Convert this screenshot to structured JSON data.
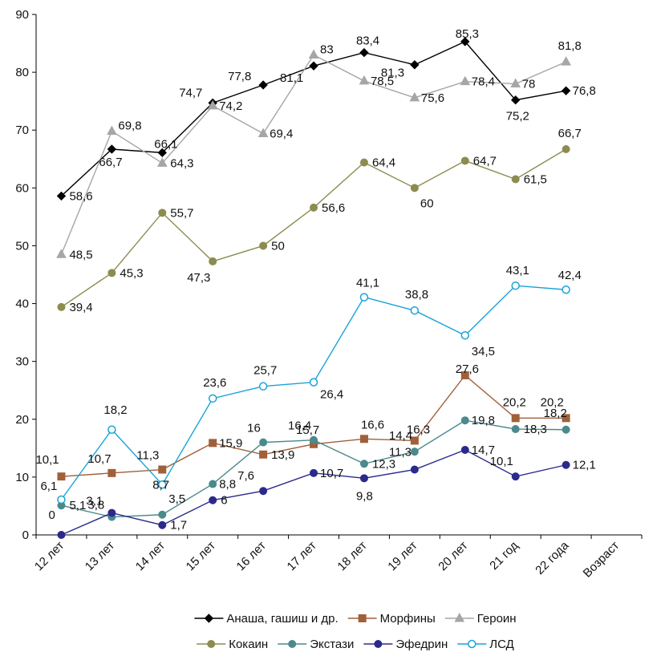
{
  "chart_data": {
    "type": "line",
    "title": "",
    "xlabel": "Возраст",
    "ylabel": "",
    "ylim": [
      0,
      90
    ],
    "yticks": [
      0,
      10,
      20,
      30,
      40,
      50,
      60,
      70,
      80,
      90
    ],
    "grid": false,
    "legend_position": "bottom",
    "categories": [
      "12 лет",
      "13 лет",
      "14 лет",
      "15 лет",
      "16 лет",
      "17 лет",
      "18 лет",
      "19 лет",
      "20 лет",
      "21 год",
      "22 года"
    ],
    "series": [
      {
        "name": "Анаша, гашиш и др.",
        "color": "#000000",
        "marker": "diamond",
        "values": [
          58.6,
          66.7,
          66.1,
          74.7,
          77.8,
          81.1,
          83.4,
          81.3,
          85.3,
          75.2,
          76.8
        ],
        "labels": [
          "58,6",
          "66,7",
          "66,1",
          "74,7",
          "77,8",
          "81,1",
          "83,4",
          "81,3",
          "85,3",
          "75,2",
          "76,8"
        ]
      },
      {
        "name": "Морфины",
        "color": "#a0603a",
        "marker": "square",
        "values": [
          10.1,
          10.7,
          11.3,
          15.9,
          13.9,
          15.7,
          16.6,
          16.3,
          27.6,
          20.2,
          20.2
        ],
        "labels": [
          "10,1",
          "10,7",
          "11,3",
          "15,9",
          "13,9",
          "15,7",
          "16,6",
          "16,3",
          "27,6",
          "20,2",
          "20,2"
        ]
      },
      {
        "name": "Героин",
        "color": "#a6a6a6",
        "marker": "triangle",
        "values": [
          48.5,
          69.8,
          64.3,
          74.2,
          69.4,
          83,
          78.5,
          75.6,
          78.4,
          78,
          81.8
        ],
        "labels": [
          "48,5",
          "69,8",
          "64,3",
          "74,2",
          "69,4",
          "83",
          "78,5",
          "75,6",
          "78,4",
          "78",
          "81,8"
        ]
      },
      {
        "name": "Кокаин",
        "color": "#8c8c50",
        "marker": "circle",
        "values": [
          39.4,
          45.3,
          55.7,
          47.3,
          50,
          56.6,
          64.4,
          60,
          64.7,
          61.5,
          66.7
        ],
        "labels": [
          "39,4",
          "45,3",
          "55,7",
          "47,3",
          "50",
          "56,6",
          "64,4",
          "60",
          "64,7",
          "61,5",
          "66,7"
        ]
      },
      {
        "name": "Экстази",
        "color": "#4a8a8c",
        "marker": "circle",
        "values": [
          5.1,
          3.1,
          3.5,
          8.8,
          16,
          16.4,
          12.3,
          14.4,
          19.8,
          18.3,
          18.2
        ],
        "labels": [
          "5,1",
          "3,1",
          "3,5",
          "8,8",
          "16",
          "16,4",
          "12,3",
          "14,4",
          "19,8",
          "18,3",
          "18,2"
        ]
      },
      {
        "name": "Эфедрин",
        "color": "#2b2a8c",
        "marker": "circle",
        "values": [
          0,
          3.8,
          1.7,
          6,
          7.6,
          10.7,
          9.8,
          11.3,
          14.7,
          10.1,
          12.1
        ],
        "labels": [
          "0",
          "3,8",
          "1,7",
          "6",
          "7,6",
          "10,7",
          "9,8",
          "11,3",
          "14,7",
          "10,1",
          "12,1"
        ]
      },
      {
        "name": "ЛСД",
        "color": "#1aa3d9",
        "marker": "open-circle",
        "values": [
          6.1,
          18.2,
          8.7,
          23.6,
          25.7,
          26.4,
          41.1,
          38.8,
          34.5,
          43.1,
          42.4
        ],
        "labels": [
          "6,1",
          "18,2",
          "8,7",
          "23,6",
          "25,7",
          "26,4",
          "41,1",
          "38,8",
          "34,5",
          "43,1",
          "42,4"
        ]
      }
    ],
    "data_label_series_order": [
      "Анаша, гашиш и др.",
      "Морфины",
      "Героин",
      "Кокаин",
      "Экстази",
      "Эфедрин",
      "ЛСД"
    ]
  }
}
